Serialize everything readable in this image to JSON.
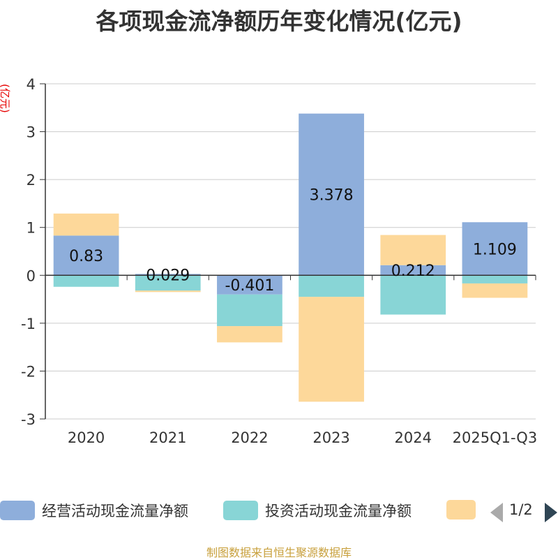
{
  "chart_data": {
    "type": "bar",
    "stacked": true,
    "title": "各项现金流净额历年变化情况(亿元)",
    "ylabel": "(亿元)",
    "categories": [
      "2020",
      "2021",
      "2022",
      "2023",
      "2024",
      "2025Q1-Q3"
    ],
    "ylim": [
      -3,
      4
    ],
    "yticks": [
      4,
      3,
      2,
      1,
      0,
      -1,
      -2,
      -3
    ],
    "series": [
      {
        "name": "经营活动现金流量净额",
        "color": "#8eaedb",
        "values": [
          0.83,
          0.029,
          -0.401,
          3.378,
          0.212,
          1.109
        ],
        "labels": [
          "0.83",
          "0.029",
          "-0.401",
          "3.378",
          "0.212",
          "1.109"
        ]
      },
      {
        "name": "投资活动现金流量净额",
        "color": "#88d5d6",
        "values": [
          -0.24,
          -0.32,
          -0.66,
          -0.45,
          -0.82,
          -0.17
        ]
      },
      {
        "name": "",
        "color": "#fdd89a",
        "values": [
          0.46,
          -0.03,
          -0.34,
          -2.19,
          0.63,
          -0.3
        ]
      }
    ]
  },
  "legend": {
    "items": [
      "经营活动现金流量净额",
      "投资活动现金流量净额",
      ""
    ],
    "page": "1/2"
  },
  "source": "制图数据来自恒生聚源数据库"
}
